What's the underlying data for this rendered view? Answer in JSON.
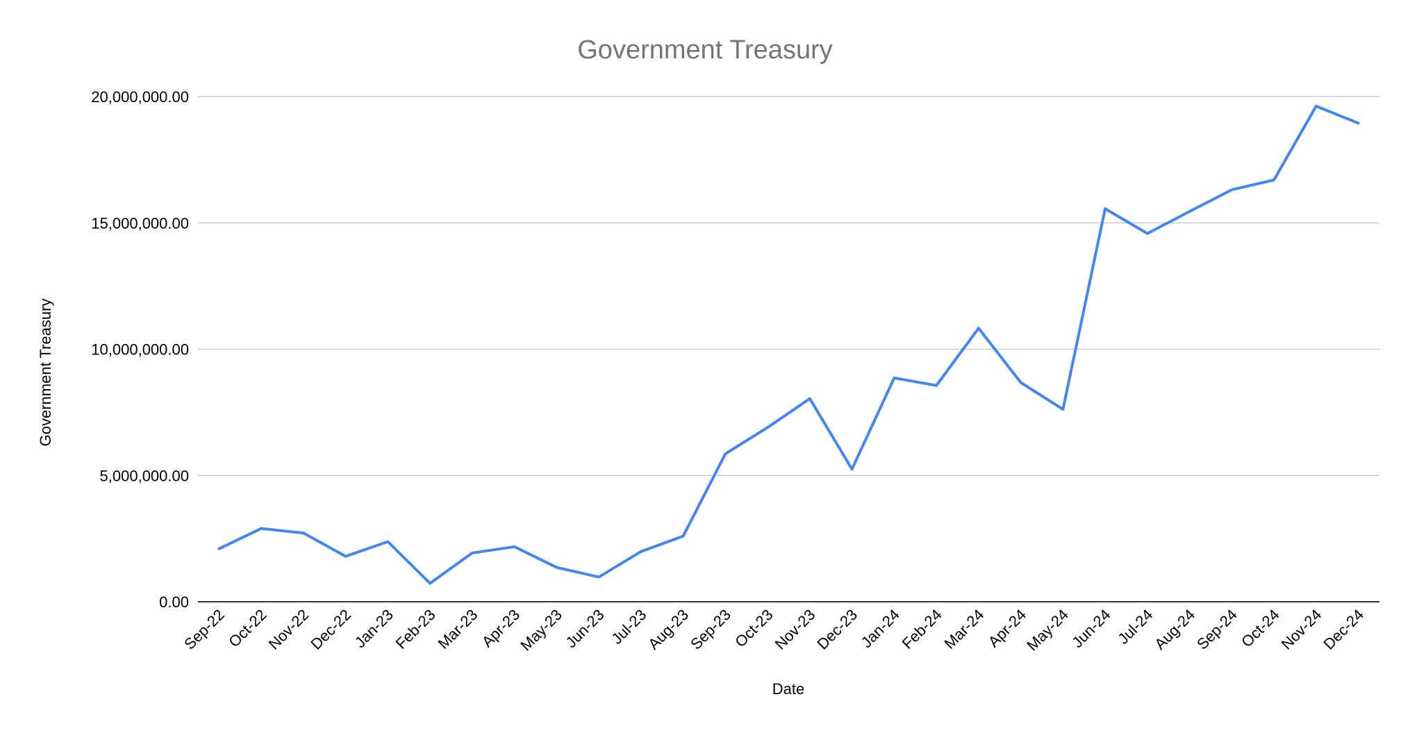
{
  "chart_data": {
    "type": "line",
    "title": "Government Treasury",
    "xlabel": "Date",
    "ylabel": "Government Treasury",
    "ylim": [
      0,
      20000000
    ],
    "yticks": [
      "0.00",
      "5,000,000.00",
      "10,000,000.00",
      "15,000,000.00",
      "20,000,000.00"
    ],
    "ytick_values": [
      0,
      5000000,
      10000000,
      15000000,
      20000000
    ],
    "grid": true,
    "legend": "none",
    "categories": [
      "Sep-22",
      "Oct-22",
      "Nov-22",
      "Dec-22",
      "Jan-23",
      "Feb-23",
      "Mar-23",
      "Apr-23",
      "May-23",
      "Jun-23",
      "Jul-23",
      "Aug-23",
      "Sep-23",
      "Oct-23",
      "Nov-23",
      "Dec-23",
      "Jan-24",
      "Feb-24",
      "Mar-24",
      "Apr-24",
      "May-24",
      "Jun-24",
      "Jul-24",
      "Aug-24",
      "Sep-24",
      "Oct-24",
      "Nov-24",
      "Dec-24"
    ],
    "series": [
      {
        "color": "#4285f4",
        "values": [
          2100000,
          2900000,
          2720000,
          1800000,
          2380000,
          730000,
          1930000,
          2180000,
          1360000,
          980000,
          1990000,
          2600000,
          5860000,
          6900000,
          8040000,
          5250000,
          8860000,
          8560000,
          10830000,
          8680000,
          7620000,
          15560000,
          14580000,
          15450000,
          16310000,
          16700000,
          19620000,
          18950000
        ]
      }
    ]
  }
}
